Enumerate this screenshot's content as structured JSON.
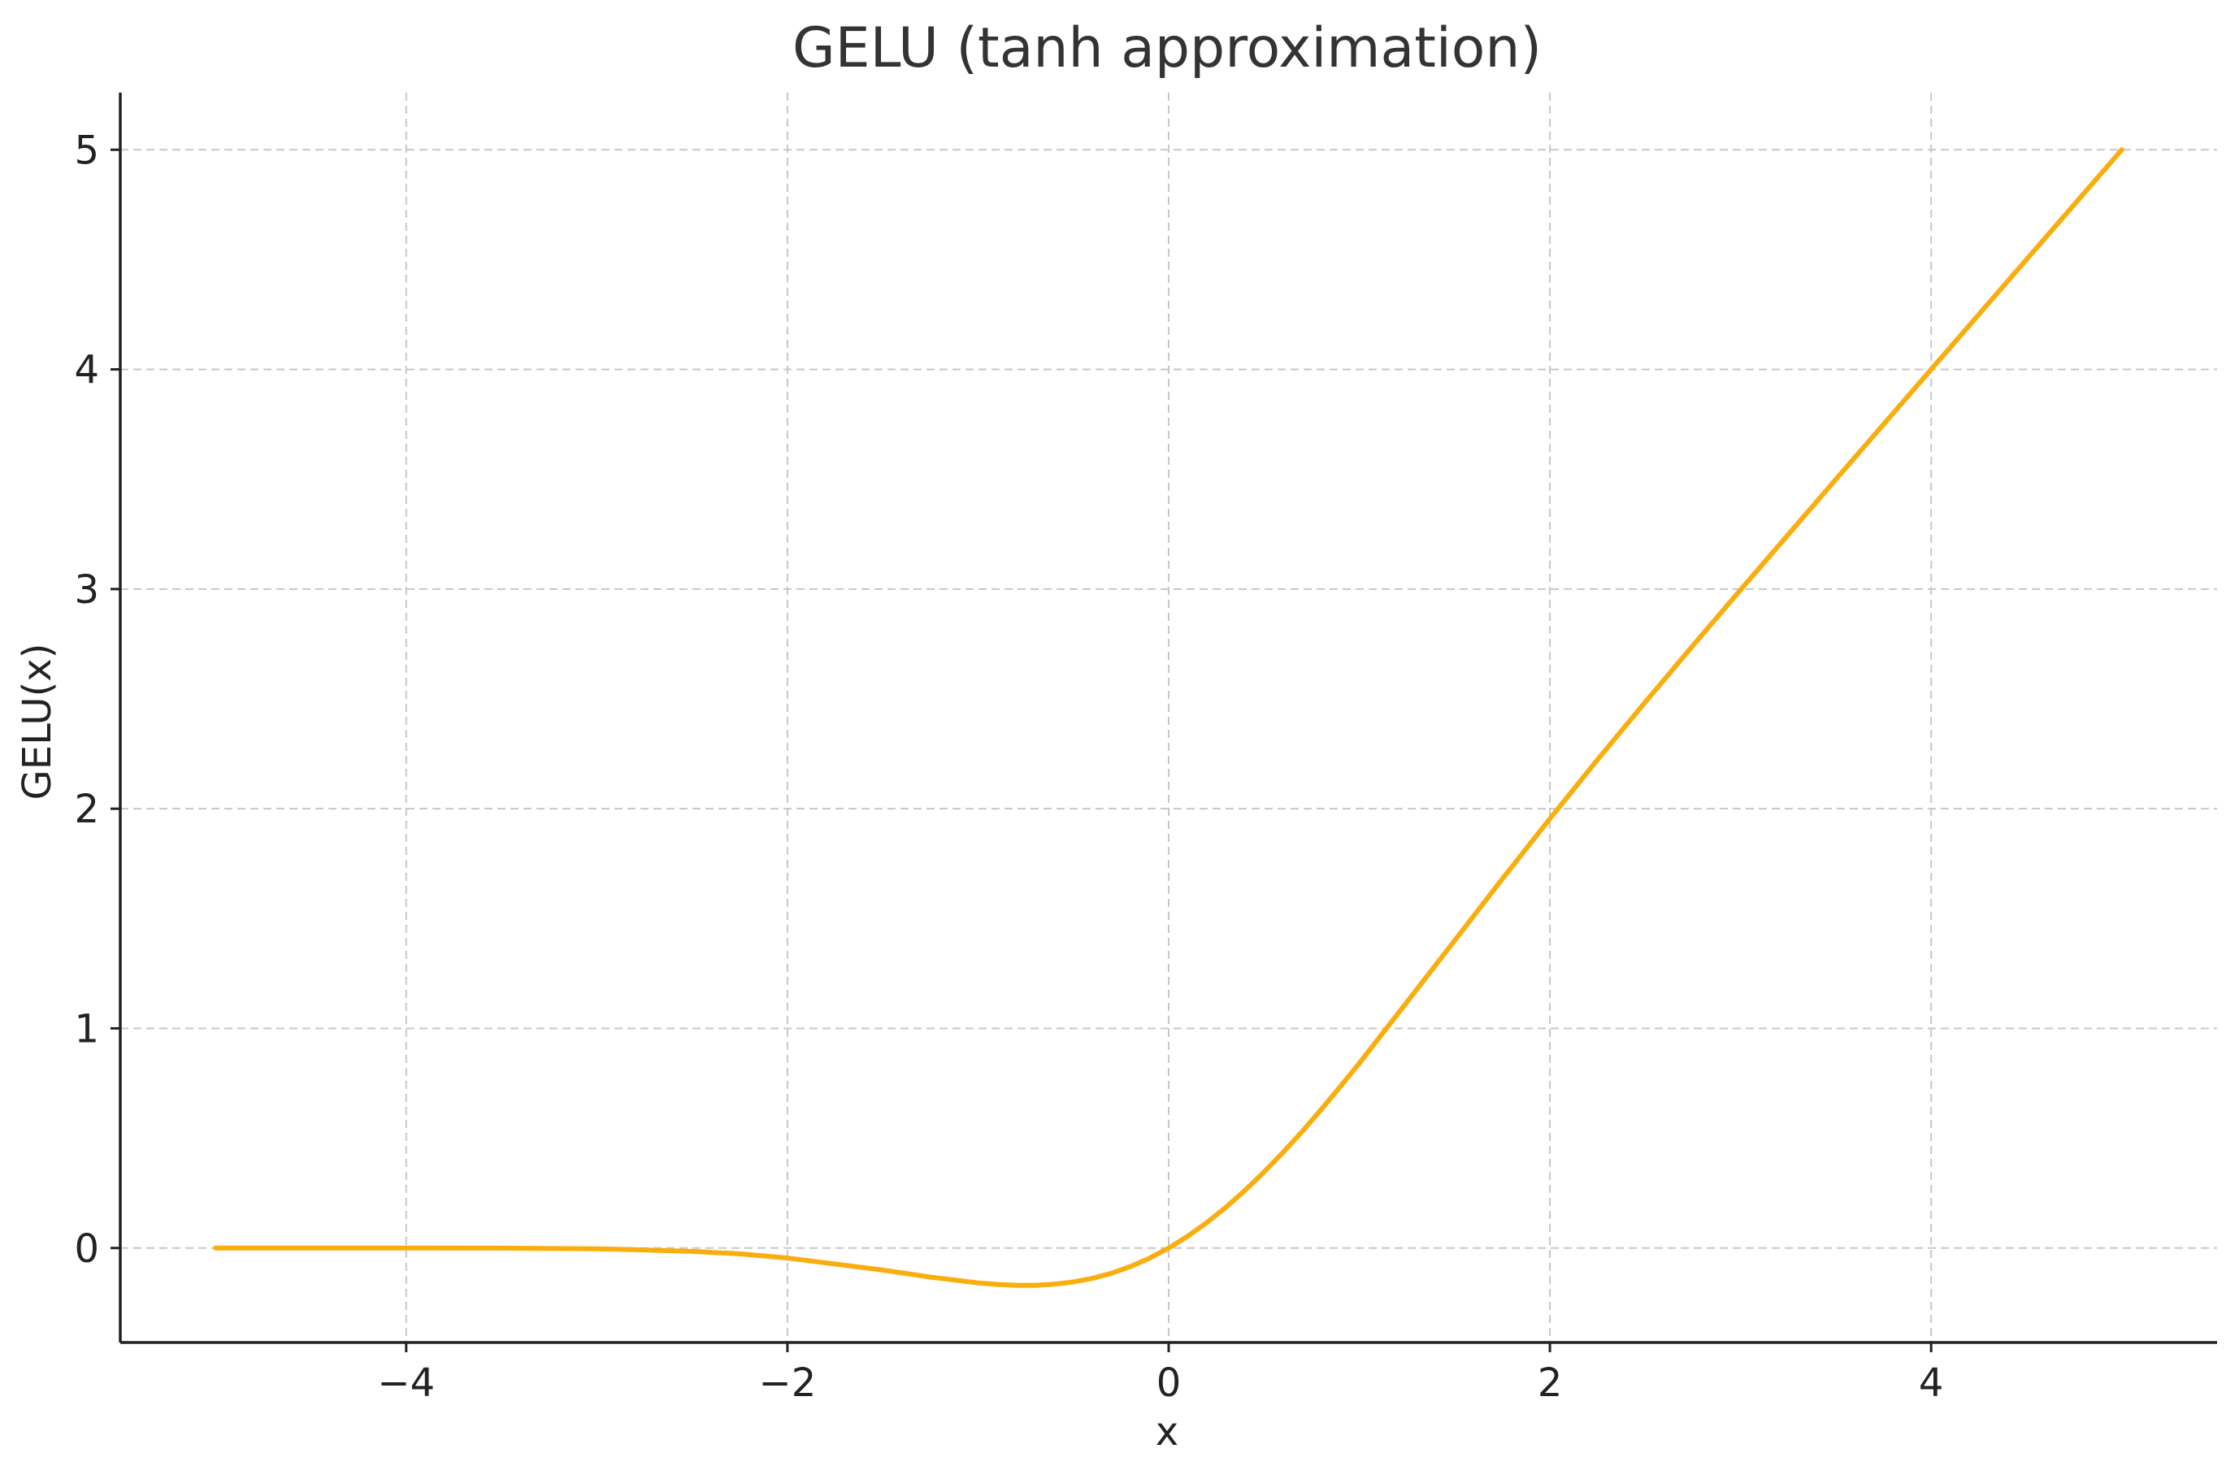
{
  "chart_data": {
    "type": "line",
    "title": "GELU (tanh approximation)",
    "xlabel": "x",
    "ylabel": "GELU(x)",
    "xlim": [
      -5.5,
      5.5
    ],
    "ylim": [
      -0.43,
      5.26
    ],
    "grid": true,
    "x_ticks": [
      -4,
      -2,
      0,
      2,
      4
    ],
    "x_tick_labels": [
      "−4",
      "−2",
      "0",
      "2",
      "4"
    ],
    "y_ticks": [
      0,
      1,
      2,
      3,
      4,
      5
    ],
    "y_tick_labels": [
      "0",
      "1",
      "2",
      "3",
      "4",
      "5"
    ],
    "series": [
      {
        "color": "#F9AE0E",
        "x": [
          -5,
          -4.5,
          -4,
          -3.5,
          -3,
          -2.75,
          -2.5,
          -2.25,
          -2,
          -1.75,
          -1.5,
          -1.25,
          -1,
          -0.9,
          -0.8,
          -0.7,
          -0.6,
          -0.5,
          -0.4,
          -0.3,
          -0.2,
          -0.1,
          0,
          0.1,
          0.2,
          0.3,
          0.4,
          0.5,
          0.6,
          0.7,
          0.8,
          0.9,
          1,
          1.25,
          1.5,
          1.75,
          2,
          2.25,
          2.5,
          2.75,
          3,
          3.5,
          4,
          4.5,
          5
        ],
        "y": [
          0,
          0,
          -0.0001,
          -0.0005,
          -0.0036,
          -0.0087,
          -0.0152,
          -0.0263,
          -0.0454,
          -0.0727,
          -0.1004,
          -0.1322,
          -0.1588,
          -0.1655,
          -0.1695,
          -0.1698,
          -0.1646,
          -0.1543,
          -0.1379,
          -0.1148,
          -0.0841,
          -0.046,
          0,
          0.054,
          0.1159,
          0.1854,
          0.2621,
          0.3457,
          0.4354,
          0.5302,
          0.6305,
          0.7347,
          0.8412,
          1.1197,
          1.3996,
          1.6799,
          1.9546,
          2.2236,
          2.4851,
          2.7425,
          2.9964,
          3.4993,
          4.0,
          4.5,
          5.0
        ]
      }
    ]
  }
}
